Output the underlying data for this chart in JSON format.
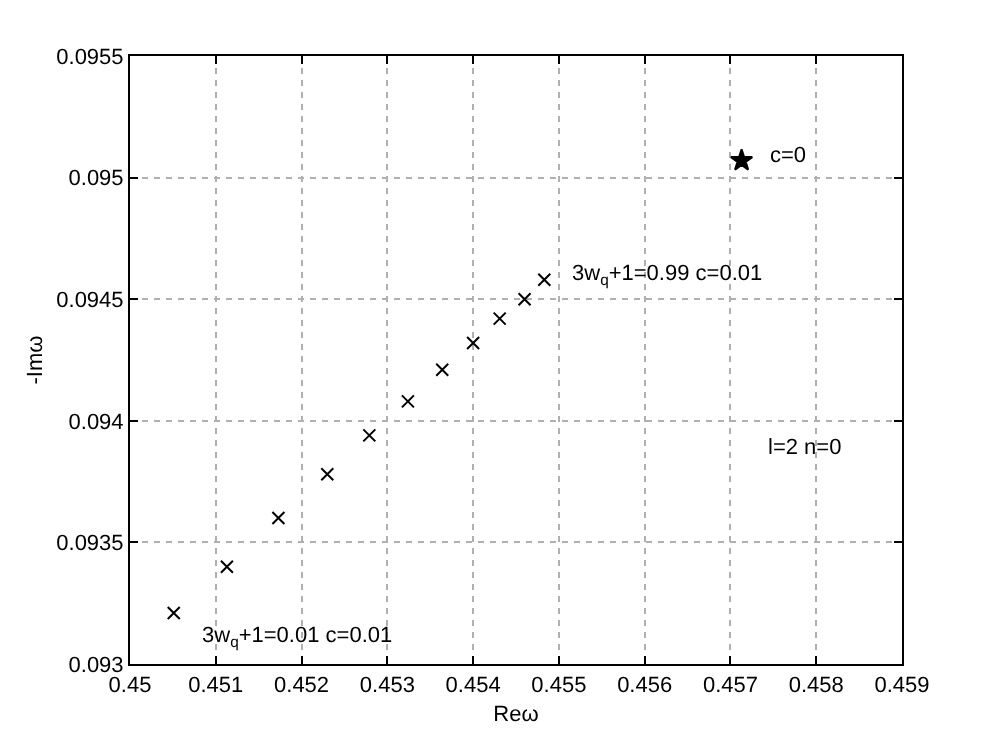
{
  "chart_data": {
    "type": "scatter",
    "xlabel": "Reω",
    "ylabel": "-Imω",
    "xlim": [
      0.45,
      0.459
    ],
    "xticks": [
      0.45,
      0.451,
      0.452,
      0.453,
      0.454,
      0.455,
      0.456,
      0.457,
      0.458,
      0.459
    ],
    "ylim": [
      0.093,
      0.0955
    ],
    "yticks": [
      0.093,
      0.0935,
      0.094,
      0.0945,
      0.095,
      0.0955
    ],
    "grid": true,
    "series": [
      {
        "color": "#000000",
        "marker": "cross",
        "x": [
          0.45051,
          0.45113,
          0.45173,
          0.4523,
          0.45279,
          0.45324,
          0.45364,
          0.454,
          0.45431,
          0.4546,
          0.45483
        ],
        "values": [
          0.09321,
          0.0934,
          0.0936,
          0.09378,
          0.09394,
          0.09408,
          0.09421,
          0.09432,
          0.09442,
          0.0945,
          0.09458
        ]
      },
      {
        "color": "#000000",
        "marker": "star",
        "x": [
          0.45713
        ],
        "values": [
          0.09507
        ]
      }
    ],
    "annotations": [
      {
        "text": "3w$_{q}$+1=0.01 c=0.01",
        "x": 0.45051,
        "y": 0.09321
      },
      {
        "text": "3w$_{q}$+1=0.99 c=0.01",
        "x": 0.45483,
        "y": 0.09458
      },
      {
        "text": "c=0",
        "x": 0.45713,
        "y": 0.09507
      },
      "l=2 n=0"
    ]
  }
}
